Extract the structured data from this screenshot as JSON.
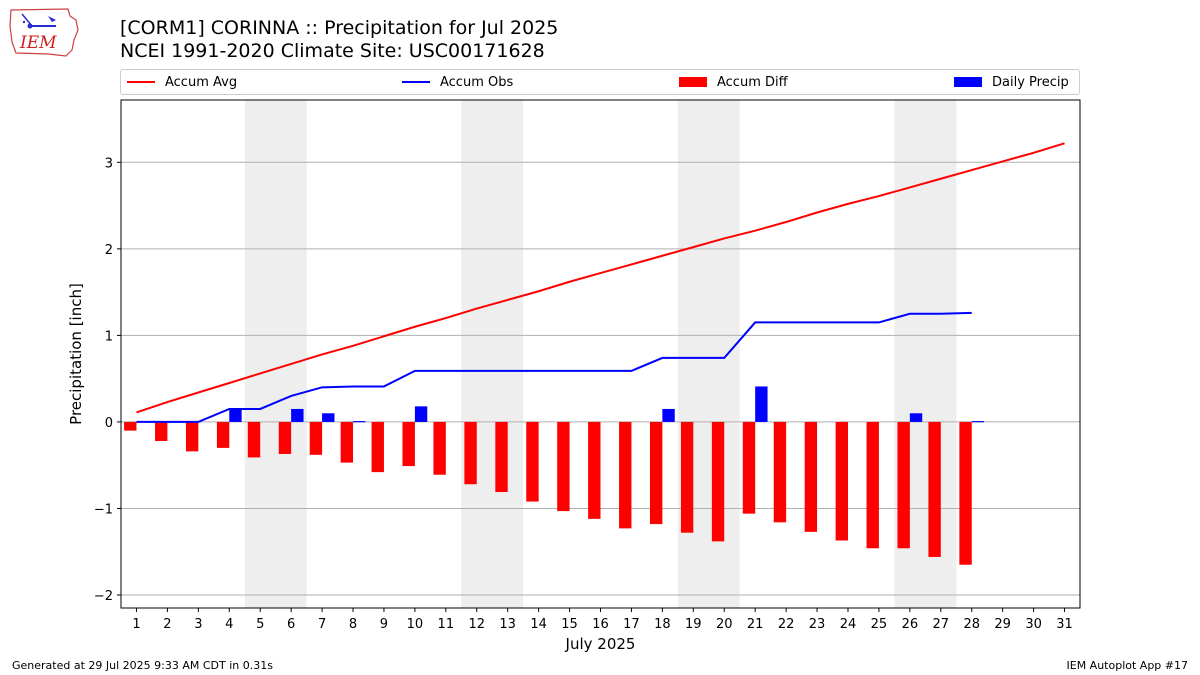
{
  "header": {
    "title": "[CORM1] CORINNA :: Precipitation for Jul 2025",
    "subtitle": "NCEI 1991-2020 Climate Site: USC00171628",
    "logo_text": "IEM"
  },
  "footer": {
    "left": "Generated at 29 Jul 2025 9:33 AM CDT in 0.31s",
    "right": "IEM Autoplot App #17"
  },
  "colors": {
    "avg": "#ff0000",
    "obs": "#0000ff",
    "diff": "#ff0000",
    "daily": "#0000ff",
    "weekend_shade": "#eeeeee",
    "grid": "#b0b0b0"
  },
  "chart_data": {
    "type": "bar",
    "xlabel": "July 2025",
    "ylabel": "Precipitation [inch]",
    "xlim": [
      0.5,
      31.5
    ],
    "ylim": [
      -2.15,
      3.72
    ],
    "yticks": [
      -2,
      -1,
      0,
      1,
      2,
      3
    ],
    "ytick_labels": [
      "−2",
      "−1",
      "0",
      "1",
      "2",
      "3"
    ],
    "grid": "horizontal",
    "legend_position": "top",
    "legend": [
      "Accum Avg",
      "Accum Obs",
      "Accum Diff",
      "Daily Precip"
    ],
    "weekend_spans": [
      [
        4.5,
        6.5
      ],
      [
        11.5,
        13.5
      ],
      [
        18.5,
        20.5
      ],
      [
        25.5,
        27.5
      ]
    ],
    "days": [
      1,
      2,
      3,
      4,
      5,
      6,
      7,
      8,
      9,
      10,
      11,
      12,
      13,
      14,
      15,
      16,
      17,
      18,
      19,
      20,
      21,
      22,
      23,
      24,
      25,
      26,
      27,
      28,
      29,
      30,
      31
    ],
    "series": [
      {
        "name": "Accum Avg",
        "kind": "line",
        "days": [
          1,
          2,
          3,
          4,
          5,
          6,
          7,
          8,
          9,
          10,
          11,
          12,
          13,
          14,
          15,
          16,
          17,
          18,
          19,
          20,
          21,
          22,
          23,
          24,
          25,
          26,
          27,
          28,
          29,
          30,
          31
        ],
        "values": [
          0.11,
          0.23,
          0.34,
          0.45,
          0.56,
          0.67,
          0.78,
          0.88,
          0.99,
          1.1,
          1.2,
          1.31,
          1.41,
          1.51,
          1.62,
          1.72,
          1.82,
          1.92,
          2.02,
          2.12,
          2.21,
          2.31,
          2.42,
          2.52,
          2.61,
          2.71,
          2.81,
          2.91,
          3.01,
          3.11,
          3.22
        ]
      },
      {
        "name": "Accum Obs",
        "kind": "line",
        "days": [
          1,
          2,
          3,
          4,
          5,
          6,
          7,
          8,
          9,
          10,
          11,
          12,
          13,
          14,
          15,
          16,
          17,
          18,
          19,
          20,
          21,
          22,
          23,
          24,
          25,
          26,
          27,
          28
        ],
        "values": [
          0.0,
          0.0,
          0.0,
          0.15,
          0.15,
          0.3,
          0.4,
          0.41,
          0.41,
          0.59,
          0.59,
          0.59,
          0.59,
          0.59,
          0.59,
          0.59,
          0.59,
          0.74,
          0.74,
          0.74,
          1.15,
          1.15,
          1.15,
          1.15,
          1.15,
          1.25,
          1.25,
          1.26
        ]
      },
      {
        "name": "Accum Diff",
        "kind": "bar",
        "days": [
          1,
          2,
          3,
          4,
          5,
          6,
          7,
          8,
          9,
          10,
          11,
          12,
          13,
          14,
          15,
          16,
          17,
          18,
          19,
          20,
          21,
          22,
          23,
          24,
          25,
          26,
          27,
          28
        ],
        "values": [
          -0.1,
          -0.22,
          -0.34,
          -0.3,
          -0.41,
          -0.37,
          -0.38,
          -0.47,
          -0.58,
          -0.51,
          -0.61,
          -0.72,
          -0.81,
          -0.92,
          -1.03,
          -1.12,
          -1.23,
          -1.18,
          -1.28,
          -1.38,
          -1.06,
          -1.16,
          -1.27,
          -1.37,
          -1.46,
          -1.46,
          -1.56,
          -1.65
        ]
      },
      {
        "name": "Daily Precip",
        "kind": "bar",
        "days": [
          1,
          2,
          3,
          4,
          5,
          6,
          7,
          8,
          9,
          10,
          11,
          12,
          13,
          14,
          15,
          16,
          17,
          18,
          19,
          20,
          21,
          22,
          23,
          24,
          25,
          26,
          27,
          28
        ],
        "values": [
          0,
          0,
          0,
          0.15,
          0,
          0.15,
          0.1,
          0.01,
          0,
          0.18,
          0,
          0,
          0,
          0,
          0,
          0,
          0,
          0.15,
          0,
          0,
          0.41,
          0,
          0,
          0,
          0,
          0.1,
          0,
          0.01
        ]
      }
    ]
  }
}
